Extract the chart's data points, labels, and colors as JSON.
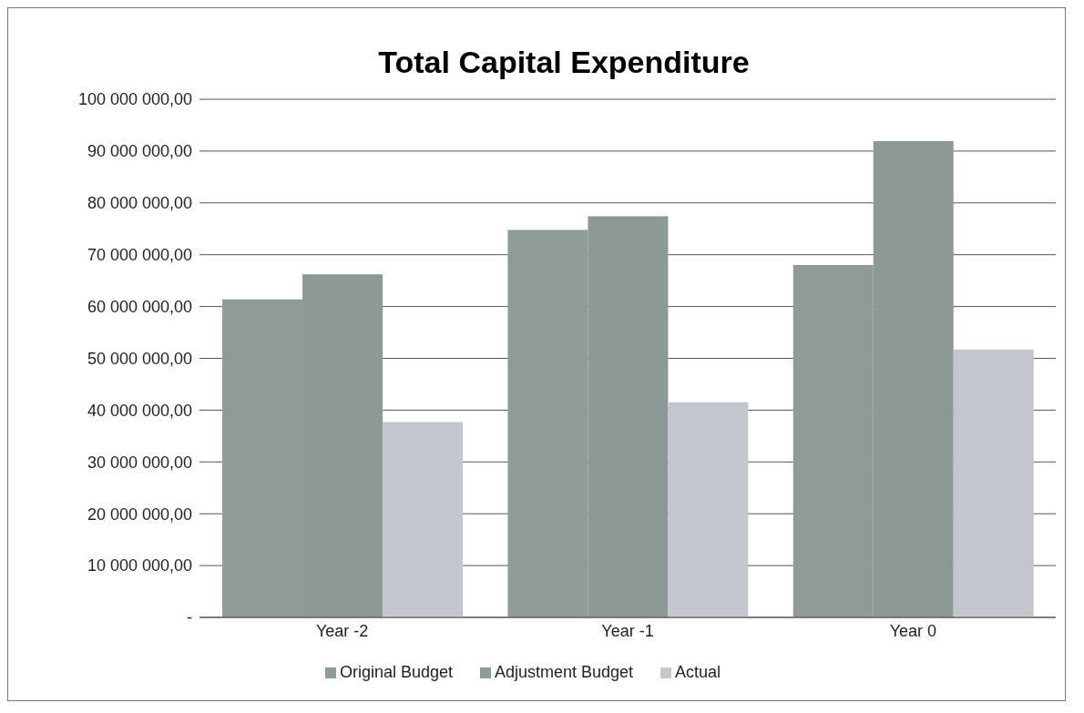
{
  "chart_data": {
    "type": "bar",
    "title": "Total Capital Expenditure",
    "categories": [
      "Year -2",
      "Year -1",
      "Year 0"
    ],
    "series": [
      {
        "name": "Original Budget",
        "color": "#8f9b97",
        "values": [
          61400000,
          74800000,
          68000000
        ]
      },
      {
        "name": "Adjustment Budget",
        "color": "#8c9995",
        "values": [
          66200000,
          77400000,
          91900000
        ]
      },
      {
        "name": "Actual",
        "color": "#c3c7cd",
        "values": [
          37700000,
          41500000,
          51700000
        ]
      }
    ],
    "ylim": [
      0,
      100000000
    ],
    "yticks": [
      {
        "value": 0,
        "label": "-"
      },
      {
        "value": 10000000,
        "label": "10 000 000,00"
      },
      {
        "value": 20000000,
        "label": "20 000 000,00"
      },
      {
        "value": 30000000,
        "label": "30 000 000,00"
      },
      {
        "value": 40000000,
        "label": "40 000 000,00"
      },
      {
        "value": 50000000,
        "label": "50 000 000,00"
      },
      {
        "value": 60000000,
        "label": "60 000 000,00"
      },
      {
        "value": 70000000,
        "label": "70 000 000,00"
      },
      {
        "value": 80000000,
        "label": "80 000 000,00"
      },
      {
        "value": 90000000,
        "label": "90 000 000,00"
      },
      {
        "value": 100000000,
        "label": "100 000 000,00"
      }
    ],
    "grid": "y",
    "legend": "bottom"
  }
}
